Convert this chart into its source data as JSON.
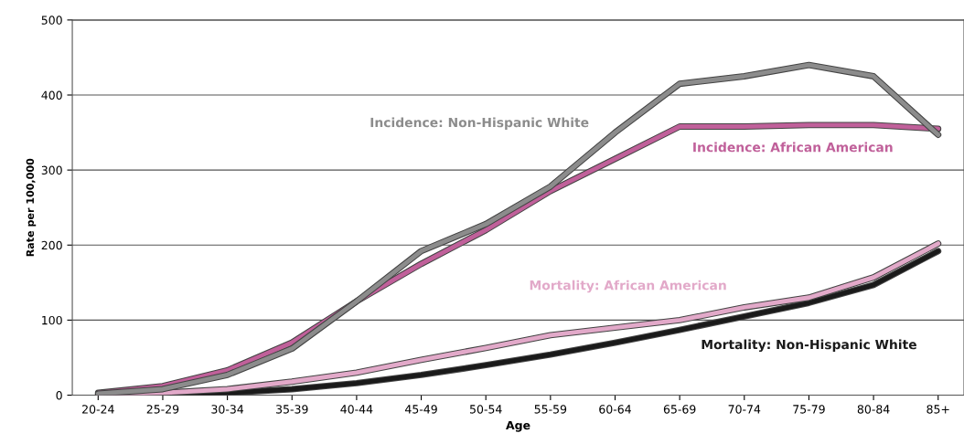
{
  "chart_data": {
    "type": "line",
    "xlabel": "Age",
    "ylabel": "Rate per 100,000",
    "categories": [
      "20-24",
      "25-29",
      "30-34",
      "35-39",
      "40-44",
      "45-49",
      "50-54",
      "55-59",
      "60-64",
      "65-69",
      "70-74",
      "75-79",
      "80-84",
      "85+"
    ],
    "series": [
      {
        "name": "Incidence: Non-Hispanic White",
        "color": "#8c8c8c",
        "values": [
          2,
          8,
          27,
          62,
          125,
          192,
          228,
          278,
          350,
          415,
          425,
          440,
          425,
          347
        ]
      },
      {
        "name": "Incidence: African American",
        "color": "#c0609a",
        "values": [
          3,
          12,
          33,
          70,
          125,
          175,
          220,
          272,
          315,
          358,
          358,
          360,
          360,
          355
        ]
      },
      {
        "name": "Mortality: African American",
        "color": "#e2a9c9",
        "values": [
          1,
          3,
          8,
          18,
          30,
          47,
          63,
          80,
          90,
          100,
          117,
          130,
          157,
          202
        ]
      },
      {
        "name": "Mortality: Non-Hispanic White",
        "color": "#1a1a1a",
        "values": [
          0,
          1,
          3,
          8,
          16,
          27,
          40,
          54,
          70,
          87,
          105,
          123,
          147,
          192
        ]
      }
    ],
    "ylim": [
      0,
      500
    ],
    "yticks": [
      0,
      100,
      200,
      300,
      400,
      500
    ],
    "grid": "y",
    "legend": false,
    "marker": "none",
    "line_style": "solid"
  }
}
